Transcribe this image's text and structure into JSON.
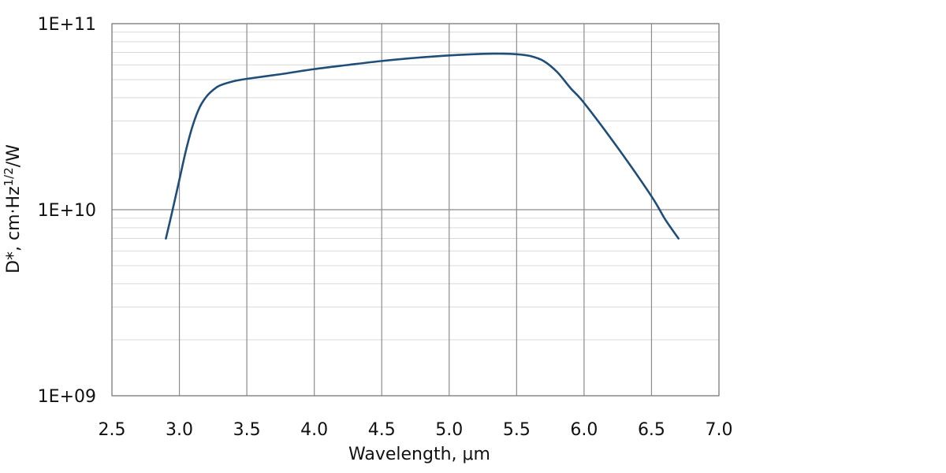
{
  "chart_data": {
    "type": "line",
    "title": "",
    "xlabel": "Wavelength, μm",
    "ylabel": {
      "prefix": "D*, cm·Hz",
      "superscript": "1/2",
      "suffix": "/W"
    },
    "xlim": [
      2.5,
      7.0
    ],
    "ylim": [
      1000000000,
      100000000000
    ],
    "yscale": "log",
    "grid": true,
    "legend": "none",
    "x_ticks": [
      "2.5",
      "3.0",
      "3.5",
      "4.0",
      "4.5",
      "5.0",
      "5.5",
      "6.0",
      "6.5",
      "7.0"
    ],
    "y_ticks": [
      {
        "value": 1000000000,
        "label": "1E+09"
      },
      {
        "value": 10000000000,
        "label": "1E+10"
      },
      {
        "value": 100000000000,
        "label": "1E+11"
      }
    ],
    "series": [
      {
        "color": "#1f4e79",
        "x": [
          2.9,
          2.95,
          3.0,
          3.05,
          3.1,
          3.15,
          3.2,
          3.25,
          3.3,
          3.4,
          3.5,
          3.75,
          4.0,
          4.25,
          4.5,
          4.75,
          5.0,
          5.25,
          5.35,
          5.5,
          5.6,
          5.7,
          5.8,
          5.9,
          6.0,
          6.25,
          6.5,
          6.6,
          6.7
        ],
        "y": [
          7000000000,
          10000000000,
          14500000000,
          21000000000,
          28500000000,
          35500000000,
          40500000000,
          44000000000,
          46500000000,
          49000000000,
          50500000000,
          53500000000,
          57000000000,
          60000000000,
          63000000000,
          65500000000,
          67500000000,
          68800000000,
          69000000000,
          68500000000,
          67000000000,
          63000000000,
          55000000000,
          45000000000,
          37500000000,
          21500000000,
          11800000000,
          8900000000,
          7000000000
        ]
      }
    ]
  }
}
